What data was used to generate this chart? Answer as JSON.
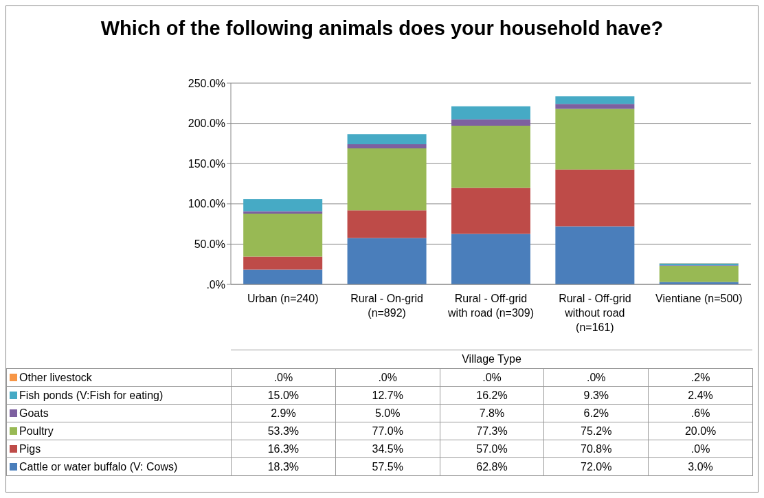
{
  "chart_data": {
    "type": "bar",
    "title": "Which of the following animals does your household have?",
    "xlabel": "Village Type",
    "categories": [
      "Urban (n=240)",
      "Rural - On-grid (n=892)",
      "Rural - Off-grid with road (n=309)",
      "Rural - Off-grid without road (n=161)",
      "Vientiane (n=500)"
    ],
    "stacked": true,
    "ylim": [
      0,
      250
    ],
    "yticks": [
      {
        "value": 0,
        "label": ".0%"
      },
      {
        "value": 50,
        "label": "50.0%"
      },
      {
        "value": 100,
        "label": "100.0%"
      },
      {
        "value": 150,
        "label": "150.0%"
      },
      {
        "value": 200,
        "label": "200.0%"
      },
      {
        "value": 250,
        "label": "250.0%"
      }
    ],
    "grid": "y",
    "legend": "bottom",
    "series": [
      {
        "name": "Cattle or water buffalo (V: Cows)",
        "color": "#4a7ebb",
        "values": [
          18.3,
          57.5,
          62.8,
          72.0,
          3.0
        ],
        "value_labels": [
          "18.3%",
          "57.5%",
          "62.8%",
          "72.0%",
          "3.0%"
        ]
      },
      {
        "name": "Pigs",
        "color": "#be4b48",
        "values": [
          16.3,
          34.5,
          57.0,
          70.8,
          0
        ],
        "value_labels": [
          "16.3%",
          "34.5%",
          "57.0%",
          "70.8%",
          ".0%"
        ]
      },
      {
        "name": "Poultry",
        "color": "#98b954",
        "values": [
          53.3,
          77.0,
          77.3,
          75.2,
          20.0
        ],
        "value_labels": [
          "53.3%",
          "77.0%",
          "77.3%",
          "75.2%",
          "20.0%"
        ]
      },
      {
        "name": "Goats",
        "color": "#7d60a0",
        "values": [
          2.9,
          5.0,
          7.8,
          6.2,
          0.6
        ],
        "value_labels": [
          "2.9%",
          "5.0%",
          "7.8%",
          "6.2%",
          ".6%"
        ]
      },
      {
        "name": "Fish ponds (V:Fish for eating)",
        "color": "#46aac5",
        "values": [
          15.0,
          12.7,
          16.2,
          9.3,
          2.4
        ],
        "value_labels": [
          "15.0%",
          "12.7%",
          "16.2%",
          "9.3%",
          "2.4%"
        ]
      },
      {
        "name": "Other livestock",
        "color": "#f79646",
        "values": [
          0,
          0,
          0,
          0,
          0.2
        ],
        "value_labels": [
          ".0%",
          ".0%",
          ".0%",
          ".0%",
          ".2%"
        ]
      }
    ]
  }
}
